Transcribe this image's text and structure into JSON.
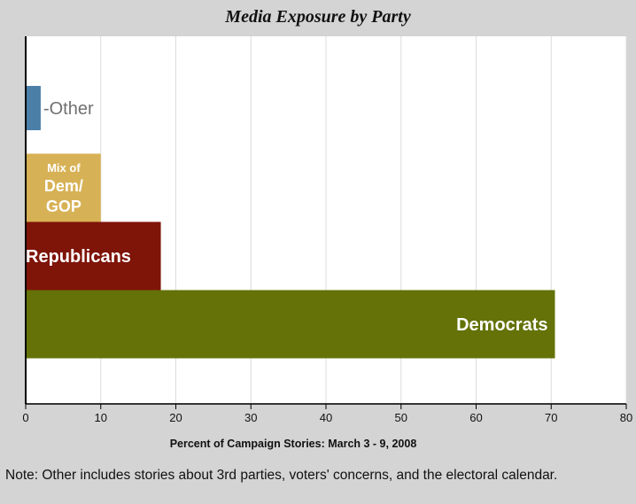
{
  "chart_data": {
    "type": "bar",
    "orientation": "horizontal",
    "title": "Media Exposure by Party",
    "xlabel": "Percent of Campaign Stories: March 3 - 9, 2008",
    "ylabel": "",
    "xlim": [
      0,
      80
    ],
    "xticks": [
      "0",
      "10",
      "20",
      "30",
      "40",
      "50",
      "60",
      "70",
      "80"
    ],
    "grid": true,
    "bars": [
      {
        "label": "Democrats",
        "value": 70.5,
        "color": "#647208",
        "label_position": "inside-right"
      },
      {
        "label": "Republicans",
        "value": 18,
        "color": "#7f1409",
        "label_position": "inside-left"
      },
      {
        "label_lines": [
          "Mix of",
          "Dem/",
          "GOP"
        ],
        "value": 10,
        "color": "#d7b155",
        "label_position": "inside"
      },
      {
        "label": "-Other",
        "value": 2,
        "color": "#4b7fa8",
        "label_position": "outside-right"
      }
    ],
    "note": "Note: Other includes stories about 3rd parties, voters' concerns, and the electoral calendar."
  }
}
